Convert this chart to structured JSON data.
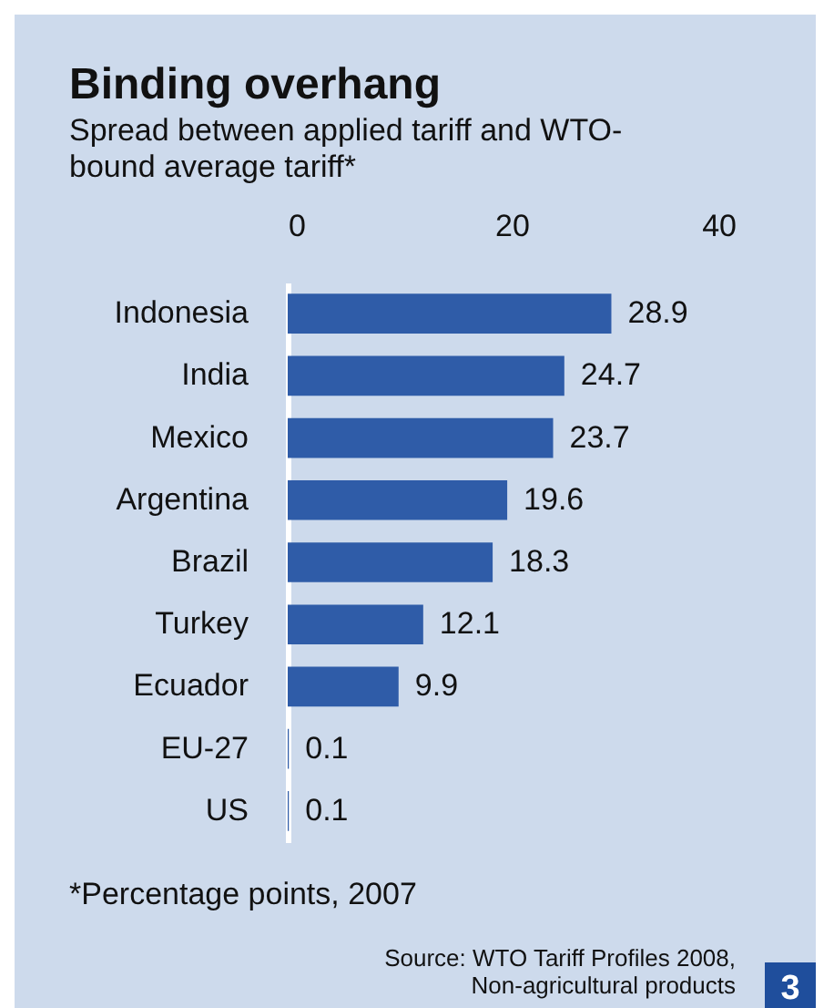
{
  "chart_data": {
    "type": "bar",
    "orientation": "horizontal",
    "title": "Binding overhang",
    "subtitle": "Spread between applied tariff and WTO-bound average tariff*",
    "categories": [
      "Indonesia",
      "India",
      "Mexico",
      "Argentina",
      "Brazil",
      "Turkey",
      "Ecuador",
      "EU-27",
      "US"
    ],
    "values": [
      28.9,
      24.7,
      23.7,
      19.6,
      18.3,
      12.1,
      9.9,
      0.1,
      0.1
    ],
    "color": "#2f5ca8",
    "xlim": [
      0,
      40
    ],
    "xticks": [
      0,
      20,
      40
    ],
    "data_labels": true,
    "grid": false,
    "annotations": [
      "*Percentage points, 2007",
      "Source: WTO Tariff Profiles 2008, Non-agricultural products",
      "3"
    ]
  }
}
